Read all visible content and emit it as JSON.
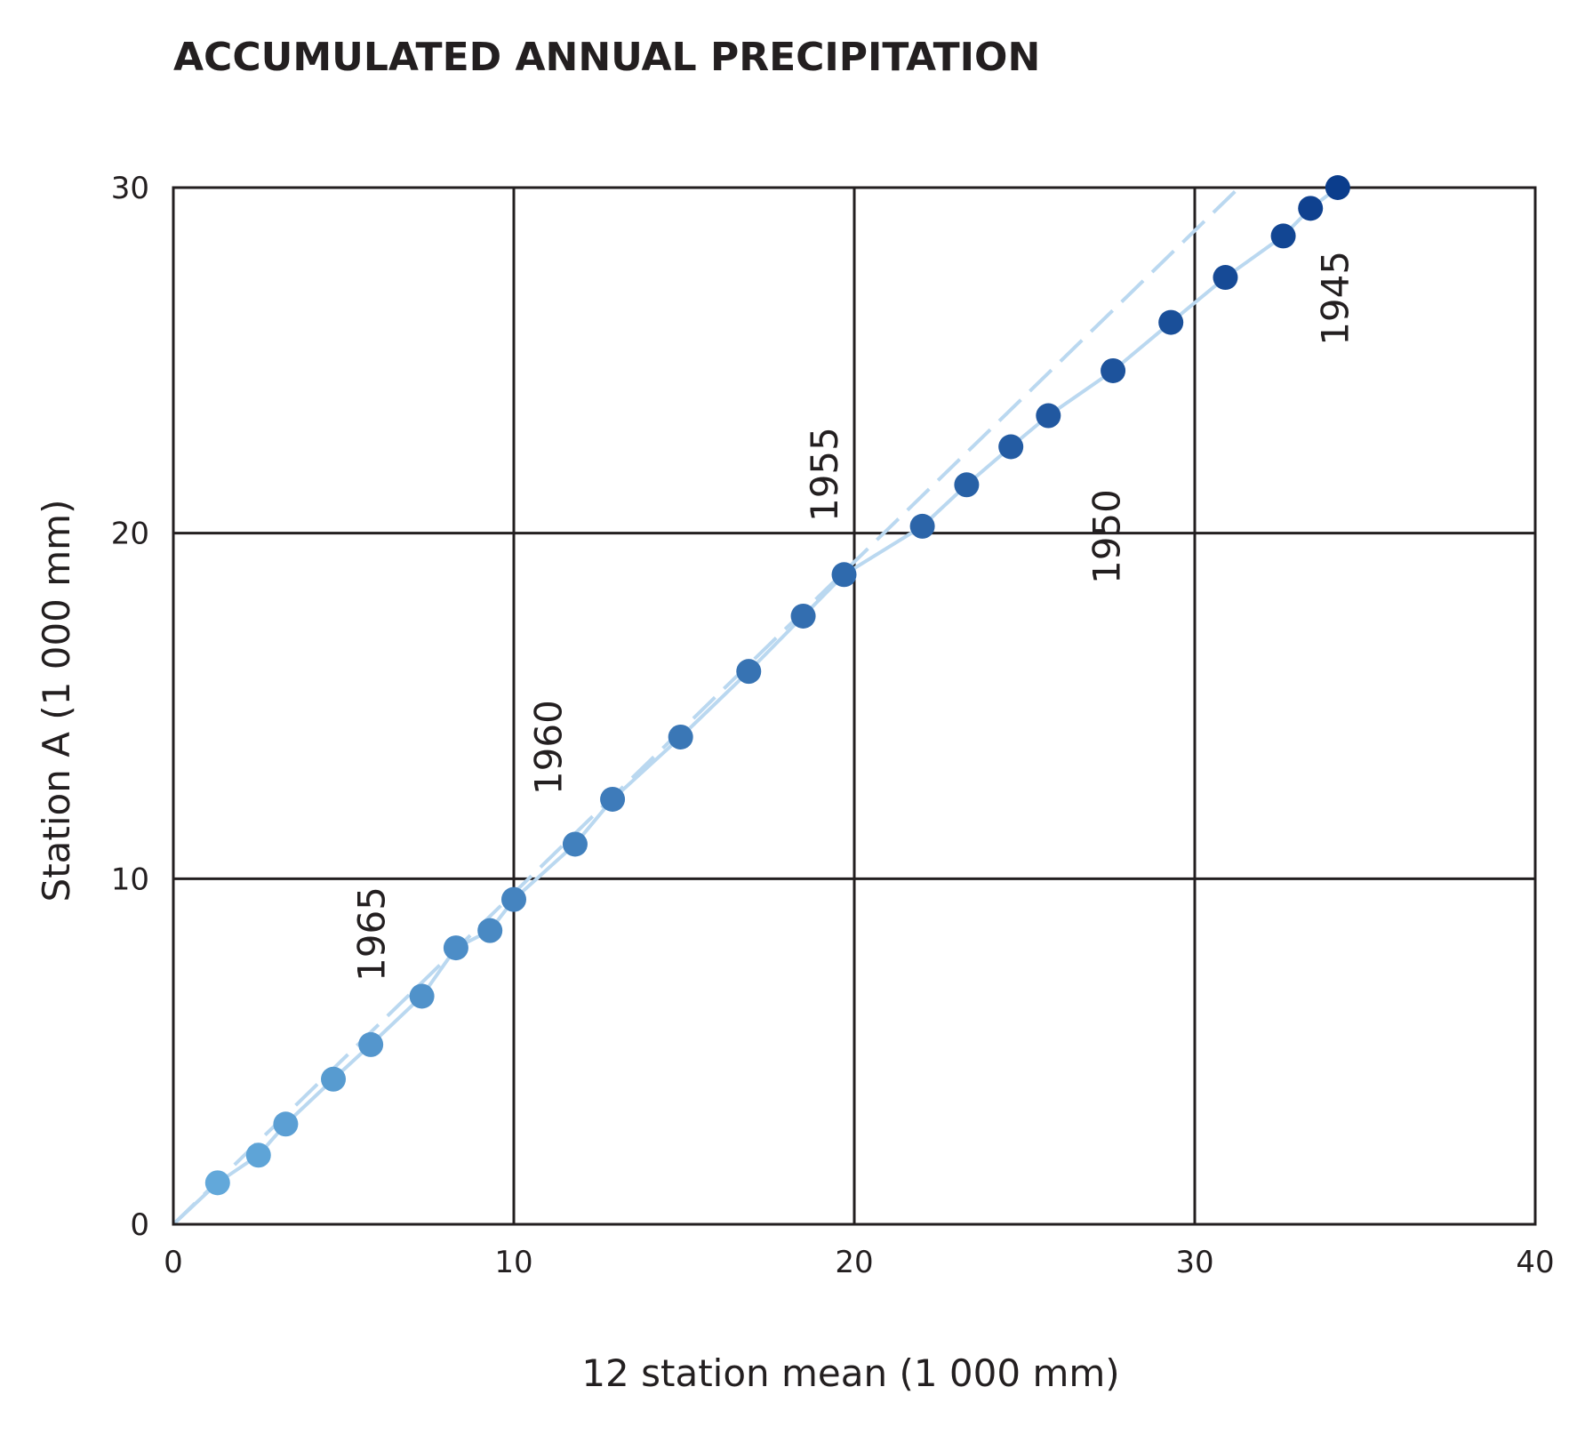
{
  "chart_data": {
    "type": "scatter",
    "title": "ACCUMULATED ANNUAL PRECIPITATION",
    "xlabel": "12 station mean (1 000 mm)",
    "ylabel": "Station A (1 000 mm)",
    "xlim": [
      0,
      40
    ],
    "ylim": [
      0,
      30
    ],
    "xticks": [
      0,
      10,
      20,
      30,
      40
    ],
    "yticks": [
      0,
      10,
      20,
      30
    ],
    "grid": true,
    "colors": {
      "light": "#62a8da",
      "dark": "#0b3d8c",
      "line": "#bad8f0",
      "grid": "#231f20"
    },
    "points": [
      {
        "x": 1.3,
        "y": 1.2
      },
      {
        "x": 2.5,
        "y": 2.0
      },
      {
        "x": 3.3,
        "y": 2.9
      },
      {
        "x": 4.7,
        "y": 4.2
      },
      {
        "x": 5.8,
        "y": 5.2
      },
      {
        "x": 7.3,
        "y": 6.6
      },
      {
        "x": 8.3,
        "y": 8.0
      },
      {
        "x": 9.3,
        "y": 8.5
      },
      {
        "x": 10.0,
        "y": 9.4
      },
      {
        "x": 11.8,
        "y": 11.0
      },
      {
        "x": 12.9,
        "y": 12.3
      },
      {
        "x": 14.9,
        "y": 14.1
      },
      {
        "x": 16.9,
        "y": 16.0
      },
      {
        "x": 18.5,
        "y": 17.6
      },
      {
        "x": 19.7,
        "y": 18.8
      },
      {
        "x": 22.0,
        "y": 20.2
      },
      {
        "x": 23.3,
        "y": 21.4
      },
      {
        "x": 24.6,
        "y": 22.5
      },
      {
        "x": 25.7,
        "y": 23.4
      },
      {
        "x": 27.6,
        "y": 24.7
      },
      {
        "x": 29.3,
        "y": 26.1
      },
      {
        "x": 30.9,
        "y": 27.4
      },
      {
        "x": 32.6,
        "y": 28.6
      },
      {
        "x": 33.4,
        "y": 29.4
      },
      {
        "x": 34.2,
        "y": 30.0
      }
    ],
    "trend_line": {
      "from": [
        0,
        0
      ],
      "to": [
        31.3,
        30
      ]
    },
    "annotations": [
      {
        "text": "1965",
        "x": 6.2,
        "y": 8.4
      },
      {
        "text": "1960",
        "x": 11.4,
        "y": 13.8
      },
      {
        "text": "1955",
        "x": 19.5,
        "y": 21.7
      },
      {
        "text": "1950",
        "x": 27.8,
        "y": 19.9
      },
      {
        "text": "1945",
        "x": 34.5,
        "y": 26.8
      }
    ]
  }
}
